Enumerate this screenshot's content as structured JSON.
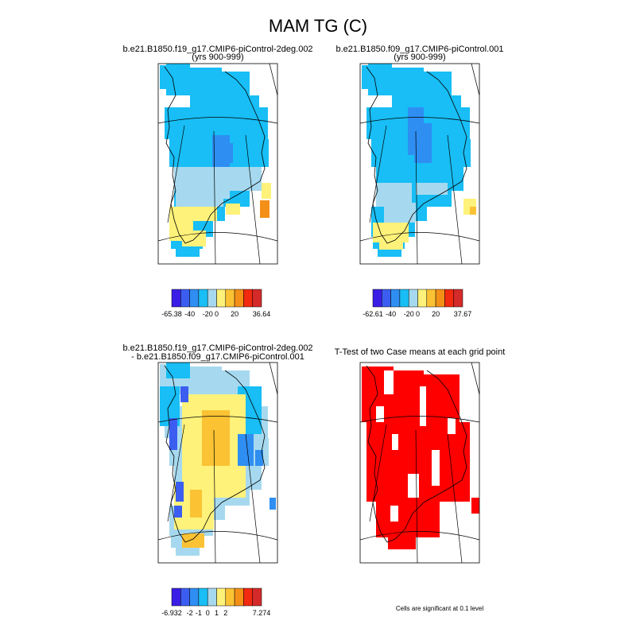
{
  "title": "MAM TG (C)",
  "panels": [
    {
      "id": "case1",
      "title_line1": "b.e21.B1850.f19_g17.CMIP6-piControl-2deg.002",
      "title_line2": "(yrs 900-999)",
      "colorbar_labels": [
        "-65.38",
        "-40",
        "-20",
        "0",
        "20",
        "36.64"
      ],
      "colorbar_colors": [
        "#3a1ee6",
        "#3c5ef0",
        "#2f8ef2",
        "#18bef5",
        "#a6d9ef",
        "#fff27a",
        "#fbc233",
        "#f49018",
        "#f22a10",
        "#d42a2a"
      ]
    },
    {
      "id": "case2",
      "title_line1": "b.e21.B1850.f09_g17.CMIP6-piControl.001",
      "title_line2": "(yrs 900-999)",
      "colorbar_labels": [
        "-62.61",
        "-40",
        "-20",
        "0",
        "20",
        "37.67"
      ],
      "colorbar_colors": [
        "#3a1ee6",
        "#3c5ef0",
        "#2f8ef2",
        "#18bef5",
        "#a6d9ef",
        "#fff27a",
        "#fbc233",
        "#f49018",
        "#f22a10",
        "#d42a2a"
      ]
    },
    {
      "id": "diff",
      "title_line1": "b.e21.B1850.f19_g17.CMIP6-piControl-2deg.002",
      "title_line2": "- b.e21.B1850.f09_g17.CMIP6-piControl.001",
      "colorbar_labels": [
        "-6.932",
        "-2",
        "-1",
        "0",
        "1",
        "2",
        "7.274"
      ],
      "colorbar_colors": [
        "#3a1ee6",
        "#3c5ef0",
        "#2f8ef2",
        "#18bef5",
        "#a6d9ef",
        "#fff27a",
        "#fbc233",
        "#f49018",
        "#f22a10",
        "#d42a2a"
      ]
    },
    {
      "id": "ttest",
      "title_line1": "T-Test of two Case means at each grid point",
      "title_line2": "",
      "note": "Cells are significant at 0.1 level",
      "sig_color": "#ff0000"
    }
  ],
  "chart_data": [
    {
      "type": "heatmap",
      "title": "b.e21.B1850.f19_g17.CMIP6-piControl-2deg.002 (yrs 900-999)",
      "levels": [
        "-65.38",
        "-40",
        "-20",
        "0",
        "20",
        "36.64"
      ]
    },
    {
      "type": "heatmap",
      "title": "b.e21.B1850.f09_g17.CMIP6-piControl.001 (yrs 900-999)",
      "levels": [
        "-62.61",
        "-40",
        "-20",
        "0",
        "20",
        "37.67"
      ]
    },
    {
      "type": "heatmap",
      "title": "b.e21.B1850.f19_g17.CMIP6-piControl-2deg.002 - b.e21.B1850.f09_g17.CMIP6-piControl.001",
      "levels": [
        "-6.932",
        "-2",
        "-1",
        "0",
        "1",
        "2",
        "7.274"
      ]
    },
    {
      "type": "heatmap",
      "title": "T-Test of two Case means at each grid point",
      "note": "Cells are significant at 0.1 level"
    }
  ]
}
